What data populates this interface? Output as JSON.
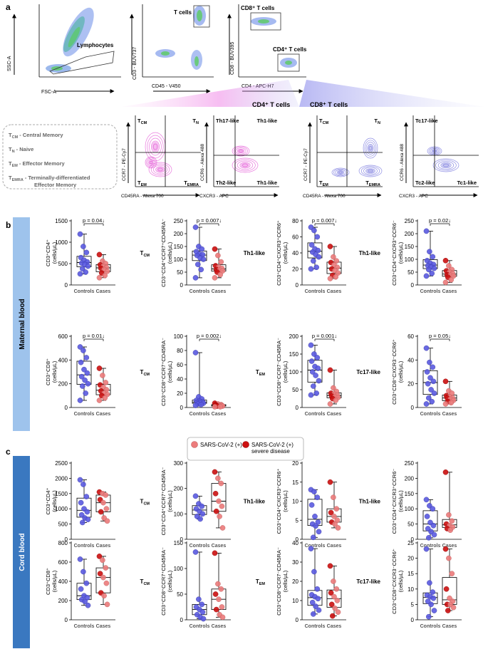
{
  "panels": {
    "a": "a",
    "b": "b",
    "c": "c"
  },
  "colors": {
    "controls": "#5a5ae0",
    "cases_mild": "#ec7b7b",
    "cases_severe": "#cc1010",
    "cd4_gate": "#e040d0",
    "cd8_gate": "#6a6ae0"
  },
  "flow": {
    "scatter1": {
      "x": "FSC-A",
      "y": "SSC-A",
      "gate": "Lymphocytes"
    },
    "scatter2": {
      "x": "CD45 - V450",
      "y": "CD3 - BUV737",
      "gate": "T cells"
    },
    "scatter3": {
      "x": "CD4 - APC-H7",
      "y": "CD8 - BUV395",
      "gate1": "CD8⁺ T cells",
      "gate2": "CD4⁺ T cells"
    },
    "cd4_title": "CD4⁺ T cells",
    "cd8_title": "CD8⁺ T cells",
    "contour1": {
      "x": "CD45RA - Alexa 700",
      "y": "CCR7 - PE-Cy7",
      "tl": "TCM",
      "tr": "TN",
      "bl": "TEM",
      "br": "TEMRA"
    },
    "contour2": {
      "x": "CXCR3 - APC",
      "y": "CCR6 - Alexa 488",
      "tl": "Th17-like",
      "tr": "Th1-like",
      "bl": "Th2-like",
      "br": "Th1-like"
    },
    "contour3": {
      "x": "CD45RA - Alexa 700",
      "y": "CCR7 - PE-Cy7",
      "tl": "TCM",
      "tr": "TN",
      "bl": "TEM",
      "br": "TEMRA"
    },
    "contour4": {
      "x": "CXCR3 - APC",
      "y": "CCR6 - Alexa 488",
      "tl": "Tc17-like",
      "tr": "",
      "bl": "Tc2-like",
      "br": "Tc1-like"
    }
  },
  "legend_box": [
    "TCM - Central Memory",
    "TN - Naive",
    "TEM - Effector Memory",
    "TEMRA - Terminally-differentiated Effector Memory"
  ],
  "section_labels": {
    "maternal": "Maternal blood",
    "cord": "Cord blood"
  },
  "group_labels": [
    "Controls",
    "Cases"
  ],
  "case_legend": {
    "mild": "SARS-CoV-2 (+)",
    "severe": "SARS-CoV-2 (+) severe disease"
  },
  "chart_data": [
    {
      "type": "box",
      "section": "Maternal blood",
      "subset": "",
      "ylabel": "CD3⁺CD4⁺ (cells/µL)",
      "ylim": [
        0,
        1500
      ],
      "yticks": [
        0,
        500,
        1000,
        1500
      ],
      "pvalue": "p = 0.04↓",
      "controls": [
        1190,
        900,
        760,
        640,
        580,
        540,
        510,
        480,
        440,
        380,
        300,
        260
      ],
      "cases": [
        710,
        560,
        500,
        470,
        440,
        410,
        390,
        360,
        320,
        280,
        220,
        170
      ]
    },
    {
      "type": "box",
      "section": "Maternal blood",
      "subset": "TCM",
      "ylabel": "CD3⁺CD4⁺CCR7⁺CD45RA⁻ (cells/µL)",
      "ylim": [
        0,
        250
      ],
      "yticks": [
        0,
        50,
        100,
        150,
        200,
        250
      ],
      "pvalue": "p = 0.007↓",
      "controls": [
        225,
        150,
        140,
        130,
        120,
        118,
        115,
        105,
        100,
        80,
        60,
        28
      ],
      "cases": [
        140,
        115,
        90,
        75,
        70,
        65,
        60,
        58,
        55,
        50,
        40,
        28
      ]
    },
    {
      "type": "box",
      "section": "Maternal blood",
      "subset": "Th1-like",
      "ylabel": "CD3⁺CD4⁺CXCR3⁺CCR6⁺ (cells/µL)",
      "ylim": [
        0,
        80
      ],
      "yticks": [
        0,
        20,
        40,
        60,
        80
      ],
      "pvalue": "p = 0.007↓",
      "controls": [
        72,
        68,
        60,
        50,
        45,
        43,
        41,
        38,
        35,
        30,
        22,
        20
      ],
      "cases": [
        48,
        35,
        30,
        28,
        25,
        22,
        20,
        18,
        15,
        12,
        10,
        8
      ]
    },
    {
      "type": "box",
      "section": "Maternal blood",
      "subset": "Th1-like",
      "ylabel": "CD3⁺CD4⁺CXCR3⁺CCR6⁻ (cells/µL)",
      "ylim": [
        0,
        250
      ],
      "yticks": [
        0,
        50,
        100,
        150,
        200,
        250
      ],
      "pvalue": "p = 0.02↓",
      "controls": [
        210,
        130,
        110,
        95,
        85,
        80,
        75,
        70,
        65,
        60,
        45,
        35
      ],
      "cases": [
        95,
        75,
        60,
        55,
        50,
        45,
        40,
        38,
        35,
        30,
        20,
        10
      ]
    },
    {
      "type": "box",
      "section": "Maternal blood",
      "subset": "",
      "ylabel": "CD3⁺CD8⁺ (cells/µL)",
      "ylim": [
        0,
        600
      ],
      "yticks": [
        0,
        200,
        400,
        600
      ],
      "pvalue": "p = 0.01↓",
      "controls": [
        510,
        480,
        420,
        380,
        320,
        290,
        260,
        230,
        200,
        180,
        120,
        60
      ],
      "cases": [
        330,
        270,
        210,
        190,
        170,
        150,
        140,
        120,
        110,
        100,
        80,
        60
      ]
    },
    {
      "type": "box",
      "section": "Maternal blood",
      "subset": "TCM",
      "ylabel": "CD3⁺CD8⁺CCR7⁺CD45RA⁻ (cells/µL)",
      "ylim": [
        0,
        100
      ],
      "yticks": [
        0,
        20,
        40,
        60,
        80,
        100
      ],
      "pvalue": "p = 0.002↓",
      "controls": [
        77,
        15,
        12,
        10,
        9,
        8,
        7,
        7,
        6,
        5,
        4,
        3
      ],
      "cases": [
        6,
        5,
        4,
        4,
        3,
        3,
        3,
        2,
        2,
        2,
        1,
        1
      ]
    },
    {
      "type": "box",
      "section": "Maternal blood",
      "subset": "TEM",
      "ylabel": "CD3⁺CD8⁺CCR7⁻CD45RA⁻ (cells/µL)",
      "ylim": [
        0,
        200
      ],
      "yticks": [
        0,
        50,
        100,
        150,
        200
      ],
      "pvalue": "p = 0.001↓",
      "controls": [
        175,
        150,
        140,
        130,
        115,
        110,
        100,
        90,
        75,
        60,
        40,
        35
      ],
      "cases": [
        105,
        55,
        45,
        40,
        38,
        35,
        32,
        30,
        28,
        25,
        20,
        10
      ]
    },
    {
      "type": "box",
      "section": "Maternal blood",
      "subset": "Tc17-like",
      "ylabel": "CD3⁺CD8⁺CXCR3⁻CCR6⁺ (cells/µL)",
      "ylim": [
        0,
        60
      ],
      "yticks": [
        0,
        20,
        40,
        60
      ],
      "pvalue": "p = 0.05↓",
      "controls": [
        50,
        38,
        34,
        30,
        25,
        22,
        20,
        15,
        12,
        8,
        5,
        3
      ],
      "cases": [
        22,
        14,
        12,
        10,
        9,
        8,
        8,
        7,
        6,
        5,
        4,
        3
      ]
    },
    {
      "type": "box",
      "section": "Cord blood",
      "subset": "",
      "ylabel": "CD3⁺CD4⁺ (cells/µL)",
      "ylim": [
        0,
        2500
      ],
      "yticks": [
        0,
        500,
        1000,
        1500,
        2000,
        2500
      ],
      "pvalue": "",
      "controls": [
        1950,
        1800,
        1400,
        1200,
        1000,
        900,
        800,
        700,
        650,
        550
      ],
      "cases": [
        1550,
        1500,
        1450,
        1300,
        1200,
        1000,
        900,
        700,
        600
      ]
    },
    {
      "type": "box",
      "section": "Cord blood",
      "subset": "TCM",
      "ylabel": "CD3⁺CD4⁺CCR7⁺CD45RA⁻ (cells/µL)",
      "ylim": [
        0,
        300
      ],
      "yticks": [
        0,
        100,
        200,
        300
      ],
      "pvalue": "",
      "controls": [
        170,
        140,
        130,
        120,
        110,
        100,
        90,
        80
      ],
      "cases": [
        265,
        240,
        220,
        180,
        150,
        130,
        110,
        90,
        45
      ]
    },
    {
      "type": "box",
      "section": "Cord blood",
      "subset": "Th1-like",
      "ylabel": "CD3⁺CD4⁺CXCR3⁺CCR6⁺ (cells/µL)",
      "ylim": [
        0,
        20
      ],
      "yticks": [
        0,
        5,
        10,
        15,
        20
      ],
      "pvalue": "",
      "controls": [
        13,
        12.5,
        11,
        9,
        6,
        4.5,
        4,
        3.5,
        2,
        0.5
      ],
      "cases": [
        15,
        11,
        8,
        7,
        6,
        5,
        4.5,
        4,
        3
      ]
    },
    {
      "type": "box",
      "section": "Cord blood",
      "subset": "Th1-like",
      "ylabel": "CD3⁺CD4⁺CXCR3⁺CCR6⁻ (cells/µL)",
      "ylim": [
        0,
        250
      ],
      "yticks": [
        0,
        50,
        100,
        150,
        200,
        250
      ],
      "pvalue": "",
      "controls": [
        130,
        110,
        100,
        75,
        55,
        45,
        35,
        25,
        15,
        5
      ],
      "cases": [
        220,
        80,
        60,
        50,
        45,
        40,
        35,
        30
      ]
    },
    {
      "type": "box",
      "section": "Cord blood",
      "subset": "",
      "ylabel": "CD3⁺CD8⁺ (cells/µL)",
      "ylim": [
        0,
        800
      ],
      "yticks": [
        0,
        200,
        400,
        600,
        800
      ],
      "pvalue": "",
      "controls": [
        630,
        500,
        380,
        320,
        250,
        230,
        210,
        190,
        150
      ],
      "cases": [
        660,
        620,
        540,
        480,
        440,
        380,
        280,
        250,
        160
      ]
    },
    {
      "type": "box",
      "section": "Cord blood",
      "subset": "TCM",
      "ylabel": "CD3⁺CD8⁺CCR7⁺CD45RA⁻ (cells/µL)",
      "ylim": [
        0,
        150
      ],
      "yticks": [
        0,
        50,
        100,
        150
      ],
      "pvalue": "",
      "controls": [
        132,
        40,
        30,
        25,
        20,
        15,
        10,
        5,
        2
      ],
      "cases": [
        130,
        70,
        60,
        50,
        40,
        25,
        20,
        10,
        5
      ]
    },
    {
      "type": "box",
      "section": "Cord blood",
      "subset": "TEM",
      "ylabel": "CD3⁺CD8⁺CCR7⁻CD45RA⁻ (cells/µL)",
      "ylim": [
        0,
        40
      ],
      "yticks": [
        0,
        10,
        20,
        30,
        40
      ],
      "pvalue": "",
      "controls": [
        37,
        25,
        16,
        13,
        12,
        11,
        9,
        7,
        5,
        3
      ],
      "cases": [
        28,
        20,
        16,
        14,
        12,
        10,
        8,
        6,
        4,
        2
      ]
    },
    {
      "type": "box",
      "section": "Cord blood",
      "subset": "Tc17-like",
      "ylabel": "CD3⁺CD8⁺CXCR3⁻CCR6⁺ (cells/µL)",
      "ylim": [
        0,
        25
      ],
      "yticks": [
        0,
        5,
        10,
        15,
        20,
        25
      ],
      "pvalue": "",
      "controls": [
        23,
        12,
        9,
        8,
        7.5,
        7,
        6,
        5,
        3,
        1
      ],
      "cases": [
        23,
        20,
        15,
        10,
        7,
        6,
        5,
        5,
        4,
        3
      ]
    }
  ]
}
